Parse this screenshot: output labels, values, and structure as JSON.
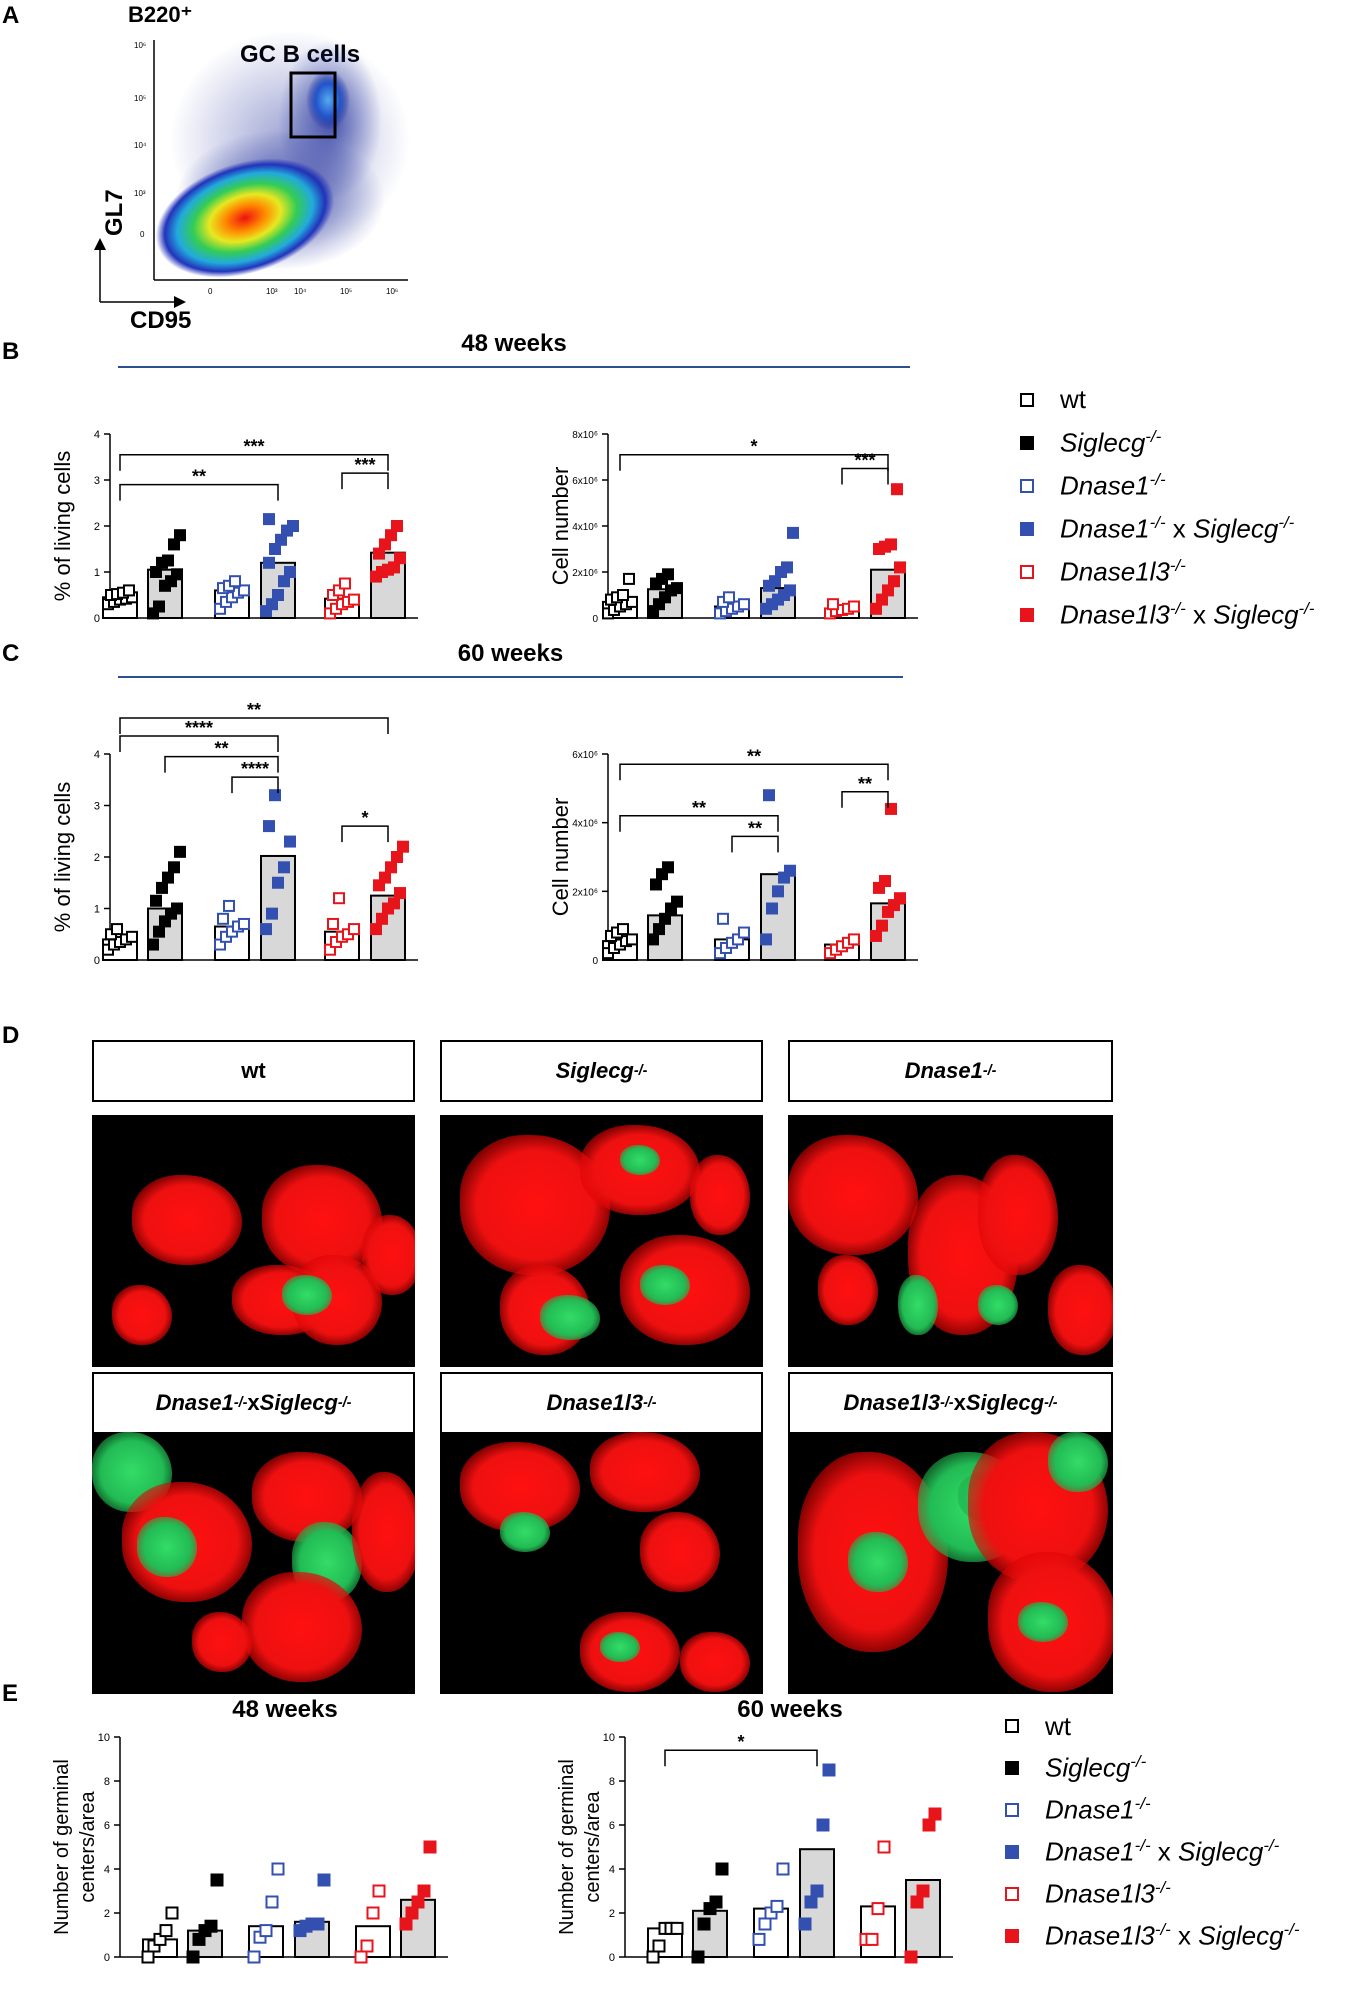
{
  "panel_letters": {
    "a": "A",
    "b": "B",
    "c": "C",
    "d": "D",
    "e": "E"
  },
  "panel_a": {
    "gate_header": "B220⁺",
    "gate_label": "GC B cells",
    "y_label": "GL7",
    "x_label": "CD95",
    "y_ticks": [
      "0",
      "10³",
      "10⁴",
      "10⁵",
      "10⁶"
    ],
    "x_ticks": [
      "0",
      "10³",
      "10⁴",
      "10⁵",
      "10⁶"
    ]
  },
  "headers": {
    "b": "48 weeks",
    "c": "60 weeks"
  },
  "colors": {
    "wt": "#000000",
    "blue": "#3350b0",
    "red": "#e8141b",
    "bar_fill": "#d8d8d8",
    "rule": "#2c4f8e"
  },
  "legend_bc": [
    {
      "mark": "open-black",
      "main": "wt",
      "sup": ""
    },
    {
      "mark": "filled-black",
      "main": "Siglecg",
      "sup": "-/-"
    },
    {
      "mark": "open-blue",
      "main": "Dnase1",
      "sup": "-/-"
    },
    {
      "mark": "filled-blue",
      "main": "Dnase1",
      "sup": "-/-",
      "mid": " x ",
      "main2": "Siglecg",
      "sup2": "-/-"
    },
    {
      "mark": "open-red",
      "main": "Dnase1l3",
      "sup": "-/-"
    },
    {
      "mark": "filled-red",
      "main": "Dnase1l3",
      "sup": "-/-",
      "mid": " x ",
      "main2": "Siglecg",
      "sup2": "-/-"
    }
  ],
  "legend_e": [
    {
      "mark": "open-black",
      "main": "wt",
      "sup": ""
    },
    {
      "mark": "filled-black",
      "main": "Siglecg",
      "sup": "-/-"
    },
    {
      "mark": "open-blue",
      "main": "Dnase1",
      "sup": "-/-"
    },
    {
      "mark": "filled-blue",
      "main": "Dnase1",
      "sup": "-/-",
      "mid": " x ",
      "main2": "Siglecg",
      "sup2": "-/-"
    },
    {
      "mark": "open-red",
      "main": "Dnase1l3",
      "sup": "-/-"
    },
    {
      "mark": "filled-red",
      "main": "Dnase1l3",
      "sup": "-/-",
      "mid": " x ",
      "main2": "Siglecg",
      "sup2": "-/-"
    }
  ],
  "panel_d": {
    "labels": [
      {
        "main": "wt",
        "sup": ""
      },
      {
        "main": "Siglecg",
        "sup": "-/-"
      },
      {
        "main": "Dnase1",
        "sup": "-/-"
      },
      {
        "main": "Dnase1",
        "sup": "-/-",
        "mid": " x ",
        "main2": "Siglecg",
        "sup2": "-/-"
      },
      {
        "main": "Dnase1l3",
        "sup": "-/-"
      },
      {
        "main": "Dnase1l3",
        "sup": "-/-",
        "mid": " x ",
        "main2": "Siglecg",
        "sup2": "-/-"
      }
    ]
  },
  "chart_data": [
    {
      "id": "b-left",
      "type": "bar",
      "title": "",
      "ylabel": "% of living cells",
      "ylim": [
        0,
        4
      ],
      "yticks": [
        "0",
        "1",
        "2",
        "3",
        "4"
      ],
      "groups": [
        "wt",
        "Siglecg-/-",
        "Dnase1-/-",
        "Dnase1-/- x Siglecg-/-",
        "Dnase1l3-/-",
        "Dnase1l3-/- x Siglecg-/-"
      ],
      "means": [
        0.45,
        1.05,
        0.6,
        1.2,
        0.42,
        1.42
      ],
      "points": [
        [
          0.3,
          0.35,
          0.4,
          0.42,
          0.45,
          0.5,
          0.52,
          0.55,
          0.6
        ],
        [
          0.1,
          0.25,
          0.7,
          0.8,
          0.95,
          1.0,
          1.2,
          1.25,
          1.6,
          1.8
        ],
        [
          0.2,
          0.35,
          0.45,
          0.55,
          0.6,
          0.65,
          0.7,
          0.8
        ],
        [
          0.15,
          0.3,
          0.5,
          0.8,
          1.0,
          1.2,
          1.5,
          1.7,
          1.9,
          2.0,
          2.15
        ],
        [
          0.1,
          0.2,
          0.3,
          0.35,
          0.4,
          0.5,
          0.6,
          0.75
        ],
        [
          0.9,
          1.0,
          1.05,
          1.1,
          1.3,
          1.4,
          1.6,
          1.8,
          2.0
        ]
      ],
      "brackets": [
        {
          "from": 0,
          "to": 3,
          "y": 2.9,
          "label": "**"
        },
        {
          "from": 0,
          "to": 5,
          "y": 3.55,
          "label": "***"
        },
        {
          "from": 4,
          "to": 5,
          "y": 3.15,
          "label": "***"
        }
      ]
    },
    {
      "id": "b-right",
      "type": "bar",
      "title": "",
      "ylabel": "Cell number",
      "ylim": [
        0,
        8
      ],
      "yticks": [
        "0",
        "2x10⁶",
        "4x10⁶",
        "6x10⁶",
        "8x10⁶"
      ],
      "groups": [
        "wt",
        "Siglecg-/-",
        "Dnase1-/-",
        "Dnase1-/- x Siglecg-/-",
        "Dnase1l3-/-",
        "Dnase1l3-/- x Siglecg-/-"
      ],
      "means": [
        0.7,
        1.25,
        0.5,
        1.3,
        0.4,
        2.1
      ],
      "points": [
        [
          0.2,
          0.35,
          0.5,
          0.6,
          0.7,
          0.8,
          0.9,
          1.0,
          1.7
        ],
        [
          0.3,
          0.6,
          0.9,
          1.2,
          1.3,
          1.5,
          1.7,
          1.9
        ],
        [
          0.2,
          0.3,
          0.4,
          0.5,
          0.6,
          0.7,
          0.9
        ],
        [
          0.4,
          0.6,
          0.8,
          1.0,
          1.2,
          1.4,
          1.6,
          2.0,
          2.2,
          3.7
        ],
        [
          0.2,
          0.3,
          0.35,
          0.4,
          0.5,
          0.6
        ],
        [
          0.4,
          0.8,
          1.2,
          1.6,
          2.2,
          3.0,
          3.1,
          3.2,
          5.6
        ]
      ],
      "brackets": [
        {
          "from": 0,
          "to": 5,
          "y": 7.1,
          "label": "*"
        },
        {
          "from": 4,
          "to": 5,
          "y": 6.5,
          "label": "***"
        }
      ]
    },
    {
      "id": "c-left",
      "type": "bar",
      "title": "",
      "ylabel": "% of living cells",
      "ylim": [
        0,
        4
      ],
      "yticks": [
        "0",
        "1",
        "2",
        "3",
        "4"
      ],
      "groups": [
        "wt",
        "Siglecg-/-",
        "Dnase1-/-",
        "Dnase1-/- x Siglecg-/-",
        "Dnase1l3-/-",
        "Dnase1l3-/- x Siglecg-/-"
      ],
      "means": [
        0.4,
        1.0,
        0.65,
        2.02,
        0.55,
        1.25
      ],
      "points": [
        [
          0.2,
          0.3,
          0.35,
          0.4,
          0.45,
          0.5,
          0.6
        ],
        [
          0.3,
          0.55,
          0.75,
          0.9,
          1.0,
          1.15,
          1.4,
          1.6,
          1.8,
          2.1
        ],
        [
          0.3,
          0.45,
          0.55,
          0.65,
          0.7,
          0.8,
          1.05
        ],
        [
          0.6,
          0.9,
          1.5,
          1.8,
          2.3,
          2.6,
          3.2
        ],
        [
          0.2,
          0.35,
          0.45,
          0.5,
          0.6,
          0.7,
          1.2
        ],
        [
          0.6,
          0.8,
          1.0,
          1.1,
          1.3,
          1.45,
          1.6,
          1.8,
          2.0,
          2.2
        ]
      ],
      "brackets": [
        {
          "from": 0,
          "to": 5,
          "y": 4.7,
          "label": "**"
        },
        {
          "from": 0,
          "to": 3,
          "y": 4.35,
          "label": "****"
        },
        {
          "from": 1,
          "to": 3,
          "y": 3.95,
          "label": "**"
        },
        {
          "from": 2,
          "to": 3,
          "y": 3.55,
          "label": "****"
        },
        {
          "from": 4,
          "to": 5,
          "y": 2.6,
          "label": "*"
        }
      ]
    },
    {
      "id": "c-right",
      "type": "bar",
      "title": "",
      "ylabel": "Cell number",
      "ylim": [
        0,
        6
      ],
      "yticks": [
        "0",
        "2x10⁶",
        "4x10⁶",
        "6x10⁶"
      ],
      "groups": [
        "wt",
        "Siglecg-/-",
        "Dnase1-/-",
        "Dnase1-/- x Siglecg-/-",
        "Dnase1l3-/-",
        "Dnase1l3-/- x Siglecg-/-"
      ],
      "means": [
        0.55,
        1.3,
        0.6,
        2.5,
        0.45,
        1.65
      ],
      "points": [
        [
          0.2,
          0.35,
          0.45,
          0.55,
          0.6,
          0.7,
          0.8,
          0.9
        ],
        [
          0.6,
          0.9,
          1.2,
          1.5,
          1.7,
          2.2,
          2.5,
          2.7
        ],
        [
          0.2,
          0.35,
          0.5,
          0.6,
          0.8,
          1.2
        ],
        [
          0.6,
          1.5,
          2.0,
          2.4,
          2.6,
          4.8
        ],
        [
          0.2,
          0.3,
          0.4,
          0.5,
          0.6
        ],
        [
          0.7,
          1.0,
          1.4,
          1.6,
          1.8,
          2.1,
          2.3,
          4.4
        ]
      ],
      "brackets": [
        {
          "from": 0,
          "to": 5,
          "y": 5.7,
          "label": "**"
        },
        {
          "from": 0,
          "to": 3,
          "y": 4.2,
          "label": "**"
        },
        {
          "from": 2,
          "to": 3,
          "y": 3.6,
          "label": "**"
        },
        {
          "from": 4,
          "to": 5,
          "y": 4.9,
          "label": "**"
        }
      ]
    },
    {
      "id": "e-left",
      "type": "bar",
      "title": "48 weeks",
      "ylabel": "Number of germinal centers/area",
      "ylim": [
        0,
        10
      ],
      "yticks": [
        "0",
        "2",
        "4",
        "6",
        "8",
        "10"
      ],
      "groups": [
        "wt",
        "Siglecg-/-",
        "Dnase1-/-",
        "Dnase1-/- x Siglecg-/-",
        "Dnase1l3-/-",
        "Dnase1l3-/- x Siglecg-/-"
      ],
      "means": [
        0.8,
        1.2,
        1.4,
        1.6,
        1.4,
        2.6
      ],
      "points": [
        [
          0.0,
          0.5,
          0.8,
          1.2,
          2.0
        ],
        [
          0.0,
          0.8,
          1.2,
          1.4,
          3.5
        ],
        [
          0.0,
          0.9,
          1.2,
          2.5,
          4.0
        ],
        [
          1.2,
          1.4,
          1.5,
          1.5,
          3.5
        ],
        [
          0.0,
          0.5,
          2.0,
          3.0
        ],
        [
          1.5,
          2.0,
          2.5,
          3.0,
          5.0
        ]
      ],
      "brackets": []
    },
    {
      "id": "e-right",
      "type": "bar",
      "title": "60 weeks",
      "ylabel": "Number of germinal centers/area",
      "ylim": [
        0,
        10
      ],
      "yticks": [
        "0",
        "2",
        "4",
        "6",
        "8",
        "10"
      ],
      "groups": [
        "wt",
        "Siglecg-/-",
        "Dnase1-/-",
        "Dnase1-/- x Siglecg-/-",
        "Dnase1l3-/-",
        "Dnase1l3-/- x Siglecg-/-"
      ],
      "means": [
        1.3,
        2.1,
        2.2,
        4.9,
        2.3,
        3.5
      ],
      "points": [
        [
          0.0,
          0.5,
          1.3,
          1.3,
          1.3
        ],
        [
          0.0,
          1.5,
          2.2,
          2.5,
          4.0
        ],
        [
          0.8,
          1.5,
          2.0,
          2.3,
          4.0
        ],
        [
          1.5,
          2.5,
          3.0,
          6.0,
          8.5
        ],
        [
          0.8,
          0.8,
          2.2,
          5.0
        ],
        [
          0.0,
          2.5,
          3.0,
          6.0,
          6.5
        ]
      ],
      "brackets": [
        {
          "from": 0,
          "to": 3,
          "y": 9.4,
          "label": "*"
        }
      ]
    }
  ]
}
